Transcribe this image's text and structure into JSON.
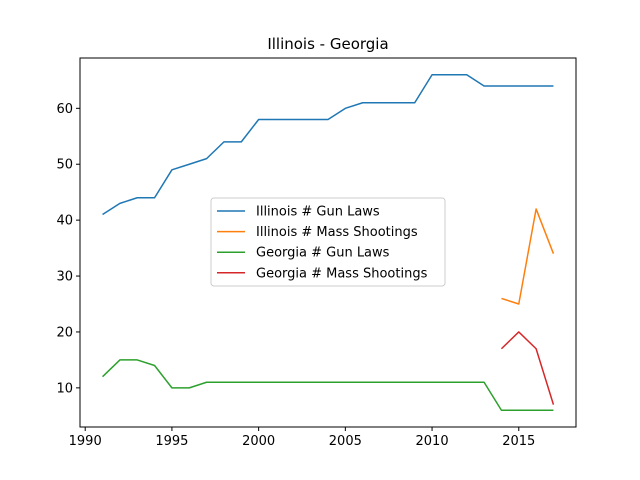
{
  "chart_data": {
    "type": "line",
    "title": "Illinois - Georgia",
    "xlabel": "",
    "ylabel": "",
    "xlim": [
      1989.7,
      2018.3
    ],
    "ylim": [
      3.0,
      69.0
    ],
    "xticks": [
      1990,
      1995,
      2000,
      2005,
      2010,
      2015
    ],
    "yticks": [
      10,
      20,
      30,
      40,
      50,
      60
    ],
    "grid": false,
    "legend_position": "center",
    "series": [
      {
        "name": "Illinois # Gun Laws",
        "color": "#1f77b4",
        "x": [
          1991,
          1992,
          1993,
          1994,
          1995,
          1996,
          1997,
          1998,
          1999,
          2000,
          2001,
          2002,
          2003,
          2004,
          2005,
          2006,
          2007,
          2008,
          2009,
          2010,
          2011,
          2012,
          2013,
          2014,
          2015,
          2016,
          2017
        ],
        "y": [
          41,
          43,
          44,
          44,
          49,
          50,
          51,
          54,
          54,
          58,
          58,
          58,
          58,
          58,
          60,
          61,
          61,
          61,
          61,
          66,
          66,
          66,
          64,
          64,
          64,
          64,
          64
        ]
      },
      {
        "name": "Illinois # Mass Shootings",
        "color": "#ff7f0e",
        "x": [
          2014,
          2015,
          2016,
          2017
        ],
        "y": [
          26,
          25,
          42,
          34
        ]
      },
      {
        "name": "Georgia # Gun Laws",
        "color": "#2ca02c",
        "x": [
          1991,
          1992,
          1993,
          1994,
          1995,
          1996,
          1997,
          1998,
          1999,
          2000,
          2001,
          2002,
          2003,
          2004,
          2005,
          2006,
          2007,
          2008,
          2009,
          2010,
          2011,
          2012,
          2013,
          2014,
          2015,
          2016,
          2017
        ],
        "y": [
          12,
          15,
          15,
          14,
          10,
          10,
          11,
          11,
          11,
          11,
          11,
          11,
          11,
          11,
          11,
          11,
          11,
          11,
          11,
          11,
          11,
          11,
          11,
          6,
          6,
          6,
          6
        ]
      },
      {
        "name": "Georgia # Mass Shootings",
        "color": "#d62728",
        "x": [
          2014,
          2015,
          2016,
          2017
        ],
        "y": [
          17,
          20,
          17,
          7
        ]
      }
    ]
  }
}
